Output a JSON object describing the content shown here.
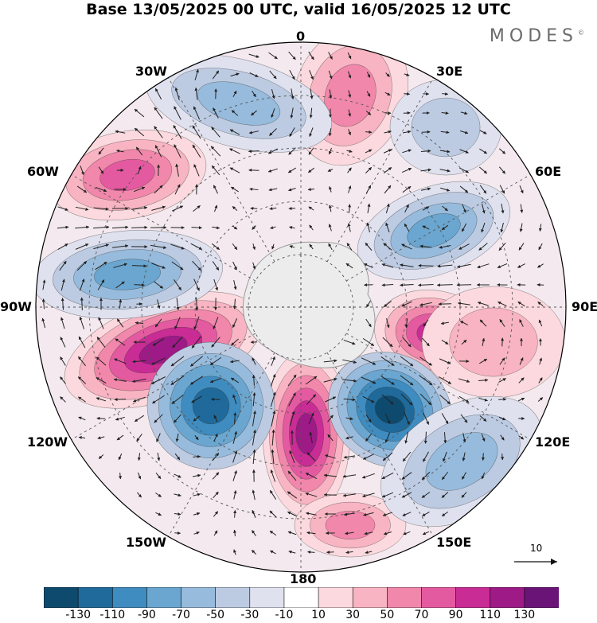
{
  "title": "Base 13/05/2025 00 UTC, valid 16/05/2025 12 UTC",
  "brand": "MODES",
  "brand_mark": "©",
  "longitude_labels": {
    "top": "0",
    "top_right": "30E",
    "right_upper": "60E",
    "right": "90E",
    "right_lower": "120E",
    "bottom_right": "150E",
    "bottom": "180",
    "bottom_left": "150W",
    "left_lower": "120W",
    "left": "90W",
    "left_upper": "60W",
    "top_left": "30W"
  },
  "vector_reference": {
    "label": "10"
  },
  "colorbar": {
    "colors": [
      "#0e4a6e",
      "#1f6a9a",
      "#3f8cc0",
      "#6aa6cf",
      "#97bbdc",
      "#bccbe2",
      "#dfe1ef",
      "#ffffff",
      "#fbd9de",
      "#f8b4c2",
      "#f187ab",
      "#e45aa0",
      "#c92c94",
      "#9d1a87",
      "#6b1478"
    ],
    "tick_labels": [
      "-130",
      "-110",
      "-90",
      "-70",
      "-50",
      "-30",
      "-10",
      "10",
      "30",
      "50",
      "70",
      "90",
      "110",
      "130"
    ]
  },
  "map_colors": {
    "land": "#ececec",
    "coast": "#9a9a9a",
    "grid": "#555555"
  }
}
